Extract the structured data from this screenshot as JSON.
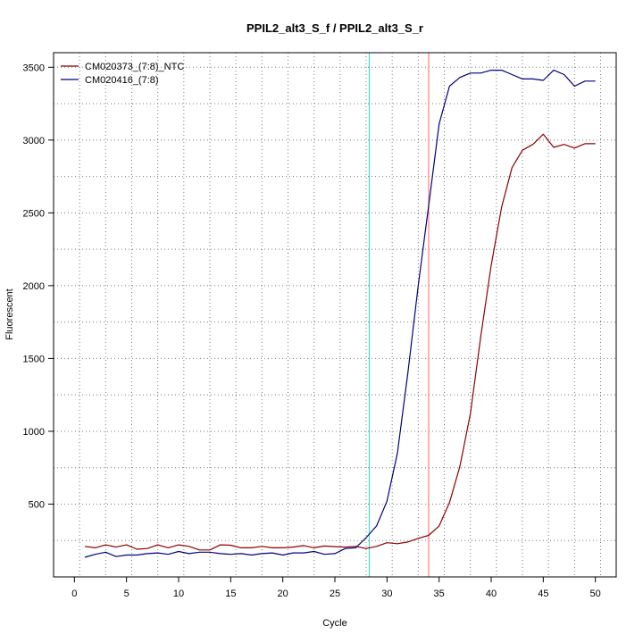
{
  "chart_data": {
    "type": "line",
    "title": "PPIL2_alt3_S_f / PPIL2_alt3_S_r",
    "xlabel": "Cycle",
    "ylabel": "Fluorescent",
    "xlim": [
      -2,
      52
    ],
    "ylim": [
      0,
      3600
    ],
    "x_ticks": [
      "0",
      "5",
      "10",
      "15",
      "20",
      "25",
      "30",
      "35",
      "40",
      "45",
      "50"
    ],
    "y_ticks": [
      "500",
      "1000",
      "1500",
      "2000",
      "2500",
      "3000",
      "3500"
    ],
    "grid": true,
    "legend_position": "top-left",
    "threshold_lines": [
      {
        "x": 28.3,
        "color": "#40e0d0"
      },
      {
        "x": 34.0,
        "color": "#ff8080"
      }
    ],
    "series": [
      {
        "name": "CM020373_(7:8)_NTC",
        "color": "#8b0000",
        "x": [
          1,
          2,
          3,
          4,
          5,
          6,
          7,
          8,
          9,
          10,
          11,
          12,
          13,
          14,
          15,
          16,
          17,
          18,
          19,
          20,
          21,
          22,
          23,
          24,
          25,
          26,
          27,
          28,
          29,
          30,
          31,
          32,
          33,
          34,
          35,
          36,
          37,
          38,
          39,
          40,
          41,
          42,
          43,
          44,
          45,
          46,
          47,
          48,
          49,
          50
        ],
        "y": [
          210,
          200,
          220,
          205,
          220,
          190,
          195,
          220,
          200,
          220,
          210,
          185,
          185,
          220,
          218,
          200,
          200,
          210,
          200,
          200,
          205,
          215,
          200,
          212,
          208,
          205,
          210,
          195,
          210,
          235,
          228,
          240,
          265,
          285,
          350,
          510,
          760,
          1120,
          1650,
          2140,
          2540,
          2810,
          2930,
          2970,
          3040,
          2950,
          2970,
          2945,
          2975,
          2975
        ]
      },
      {
        "name": "CM020416_(7:8)",
        "color": "#000080",
        "x": [
          1,
          2,
          3,
          4,
          5,
          6,
          7,
          8,
          9,
          10,
          11,
          12,
          13,
          14,
          15,
          16,
          17,
          18,
          19,
          20,
          21,
          22,
          23,
          24,
          25,
          26,
          27,
          28,
          29,
          30,
          31,
          32,
          33,
          34,
          35,
          36,
          37,
          38,
          39,
          40,
          41,
          42,
          43,
          44,
          45,
          46,
          47,
          48,
          49,
          50
        ],
        "y": [
          135,
          155,
          170,
          140,
          150,
          150,
          160,
          165,
          155,
          175,
          160,
          170,
          170,
          160,
          155,
          160,
          150,
          160,
          165,
          150,
          165,
          165,
          175,
          155,
          160,
          195,
          200,
          270,
          350,
          520,
          850,
          1400,
          2000,
          2550,
          3110,
          3370,
          3430,
          3460,
          3460,
          3480,
          3480,
          3450,
          3420,
          3420,
          3410,
          3480,
          3450,
          3370,
          3405,
          3405
        ]
      }
    ]
  }
}
